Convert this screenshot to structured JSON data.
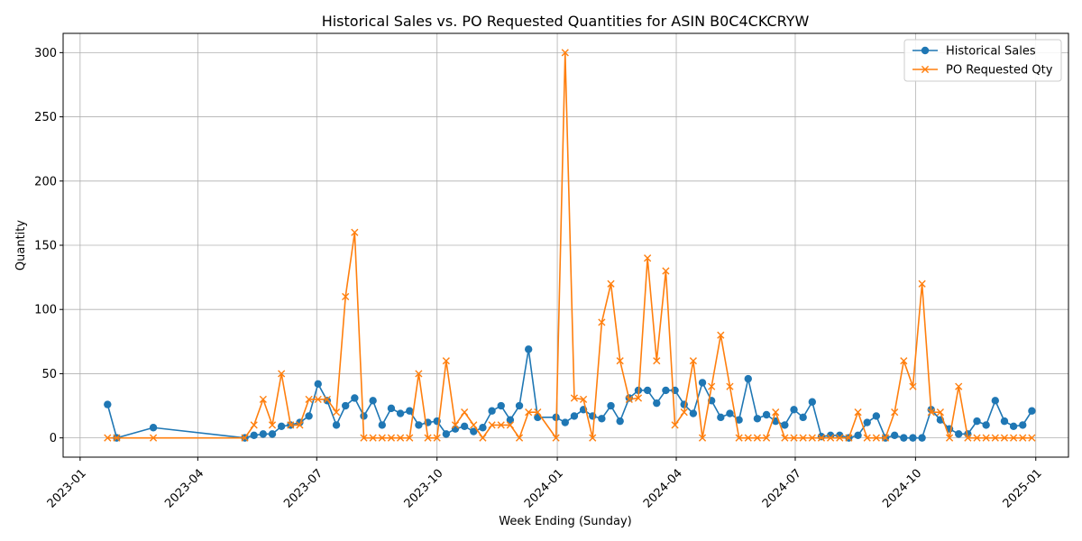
{
  "chart_data": {
    "type": "line",
    "title": "Historical Sales vs. PO Requested Quantities for ASIN B0C4CKCRYW",
    "xlabel": "Week Ending (Sunday)",
    "ylabel": "Quantity",
    "grid": true,
    "legend_position": "top-right",
    "xlim": [
      "2022-12-19",
      "2025-01-26"
    ],
    "ylim": [
      -15,
      315
    ],
    "x_ticks": [
      "2023-01",
      "2023-04",
      "2023-07",
      "2023-10",
      "2024-01",
      "2024-04",
      "2024-07",
      "2024-10",
      "2025-01"
    ],
    "y_ticks": [
      0,
      50,
      100,
      150,
      200,
      250,
      300
    ],
    "colors": {
      "sales": "#1f77b4",
      "po": "#ff7f0e",
      "grid": "#b0b0b0"
    },
    "series": [
      {
        "name": "Historical Sales",
        "marker": "circle",
        "color": "#1f77b4",
        "points": [
          [
            "2023-01-22",
            26
          ],
          [
            "2023-01-29",
            0
          ],
          [
            "2023-02-26",
            8
          ],
          [
            "2023-05-07",
            0
          ],
          [
            "2023-05-14",
            2
          ],
          [
            "2023-05-21",
            3
          ],
          [
            "2023-05-28",
            3
          ],
          [
            "2023-06-04",
            9
          ],
          [
            "2023-06-11",
            10
          ],
          [
            "2023-06-18",
            12
          ],
          [
            "2023-06-25",
            17
          ],
          [
            "2023-07-02",
            42
          ],
          [
            "2023-07-09",
            29
          ],
          [
            "2023-07-16",
            10
          ],
          [
            "2023-07-23",
            25
          ],
          [
            "2023-07-30",
            31
          ],
          [
            "2023-08-06",
            17
          ],
          [
            "2023-08-13",
            29
          ],
          [
            "2023-08-20",
            10
          ],
          [
            "2023-08-27",
            23
          ],
          [
            "2023-09-03",
            19
          ],
          [
            "2023-09-10",
            21
          ],
          [
            "2023-09-17",
            10
          ],
          [
            "2023-09-24",
            12
          ],
          [
            "2023-10-01",
            13
          ],
          [
            "2023-10-08",
            3
          ],
          [
            "2023-10-15",
            7
          ],
          [
            "2023-10-22",
            9
          ],
          [
            "2023-10-29",
            5
          ],
          [
            "2023-11-05",
            8
          ],
          [
            "2023-11-12",
            21
          ],
          [
            "2023-11-19",
            25
          ],
          [
            "2023-11-26",
            14
          ],
          [
            "2023-12-03",
            25
          ],
          [
            "2023-12-10",
            69
          ],
          [
            "2023-12-17",
            16
          ],
          [
            "2023-12-31",
            16
          ],
          [
            "2024-01-07",
            12
          ],
          [
            "2024-01-14",
            17
          ],
          [
            "2024-01-21",
            22
          ],
          [
            "2024-01-28",
            17
          ],
          [
            "2024-02-04",
            15
          ],
          [
            "2024-02-11",
            25
          ],
          [
            "2024-02-18",
            13
          ],
          [
            "2024-02-25",
            31
          ],
          [
            "2024-03-03",
            37
          ],
          [
            "2024-03-10",
            37
          ],
          [
            "2024-03-17",
            27
          ],
          [
            "2024-03-24",
            37
          ],
          [
            "2024-03-31",
            37
          ],
          [
            "2024-04-07",
            26
          ],
          [
            "2024-04-14",
            19
          ],
          [
            "2024-04-21",
            43
          ],
          [
            "2024-04-28",
            29
          ],
          [
            "2024-05-05",
            16
          ],
          [
            "2024-05-12",
            19
          ],
          [
            "2024-05-19",
            14
          ],
          [
            "2024-05-26",
            46
          ],
          [
            "2024-06-02",
            15
          ],
          [
            "2024-06-09",
            18
          ],
          [
            "2024-06-16",
            13
          ],
          [
            "2024-06-23",
            10
          ],
          [
            "2024-06-30",
            22
          ],
          [
            "2024-07-07",
            16
          ],
          [
            "2024-07-14",
            28
          ],
          [
            "2024-07-21",
            1
          ],
          [
            "2024-07-28",
            2
          ],
          [
            "2024-08-04",
            2
          ],
          [
            "2024-08-11",
            0
          ],
          [
            "2024-08-18",
            2
          ],
          [
            "2024-08-25",
            12
          ],
          [
            "2024-09-01",
            17
          ],
          [
            "2024-09-08",
            0
          ],
          [
            "2024-09-15",
            2
          ],
          [
            "2024-09-22",
            0
          ],
          [
            "2024-09-29",
            0
          ],
          [
            "2024-10-06",
            0
          ],
          [
            "2024-10-13",
            22
          ],
          [
            "2024-10-20",
            14
          ],
          [
            "2024-10-27",
            7
          ],
          [
            "2024-11-03",
            3
          ],
          [
            "2024-11-10",
            3
          ],
          [
            "2024-11-17",
            13
          ],
          [
            "2024-11-24",
            10
          ],
          [
            "2024-12-01",
            29
          ],
          [
            "2024-12-08",
            13
          ],
          [
            "2024-12-15",
            9
          ],
          [
            "2024-12-22",
            10
          ],
          [
            "2024-12-29",
            21
          ]
        ]
      },
      {
        "name": "PO Requested Qty",
        "marker": "x",
        "color": "#ff7f0e",
        "points": [
          [
            "2023-01-22",
            0
          ],
          [
            "2023-01-29",
            0
          ],
          [
            "2023-02-26",
            0
          ],
          [
            "2023-05-07",
            0
          ],
          [
            "2023-05-14",
            10
          ],
          [
            "2023-05-21",
            30
          ],
          [
            "2023-05-28",
            10
          ],
          [
            "2023-06-04",
            50
          ],
          [
            "2023-06-11",
            10
          ],
          [
            "2023-06-18",
            10
          ],
          [
            "2023-06-25",
            30
          ],
          [
            "2023-07-02",
            30
          ],
          [
            "2023-07-09",
            30
          ],
          [
            "2023-07-16",
            20
          ],
          [
            "2023-07-23",
            110
          ],
          [
            "2023-07-30",
            160
          ],
          [
            "2023-08-06",
            0
          ],
          [
            "2023-08-13",
            0
          ],
          [
            "2023-08-20",
            0
          ],
          [
            "2023-08-27",
            0
          ],
          [
            "2023-09-03",
            0
          ],
          [
            "2023-09-10",
            0
          ],
          [
            "2023-09-17",
            50
          ],
          [
            "2023-09-24",
            0
          ],
          [
            "2023-10-01",
            0
          ],
          [
            "2023-10-08",
            60
          ],
          [
            "2023-10-15",
            10
          ],
          [
            "2023-10-22",
            20
          ],
          [
            "2023-10-29",
            10
          ],
          [
            "2023-11-05",
            0
          ],
          [
            "2023-11-12",
            10
          ],
          [
            "2023-11-19",
            10
          ],
          [
            "2023-11-26",
            10
          ],
          [
            "2023-12-03",
            0
          ],
          [
            "2023-12-10",
            20
          ],
          [
            "2023-12-17",
            20
          ],
          [
            "2023-12-31",
            0
          ],
          [
            "2024-01-07",
            300
          ],
          [
            "2024-01-14",
            31
          ],
          [
            "2024-01-21",
            30
          ],
          [
            "2024-01-28",
            0
          ],
          [
            "2024-02-04",
            90
          ],
          [
            "2024-02-11",
            120
          ],
          [
            "2024-02-18",
            60
          ],
          [
            "2024-02-25",
            30
          ],
          [
            "2024-03-03",
            31
          ],
          [
            "2024-03-10",
            140
          ],
          [
            "2024-03-17",
            60
          ],
          [
            "2024-03-24",
            130
          ],
          [
            "2024-03-31",
            10
          ],
          [
            "2024-04-07",
            20
          ],
          [
            "2024-04-14",
            60
          ],
          [
            "2024-04-21",
            0
          ],
          [
            "2024-04-28",
            40
          ],
          [
            "2024-05-05",
            80
          ],
          [
            "2024-05-12",
            40
          ],
          [
            "2024-05-19",
            0
          ],
          [
            "2024-05-26",
            0
          ],
          [
            "2024-06-02",
            0
          ],
          [
            "2024-06-09",
            0
          ],
          [
            "2024-06-16",
            20
          ],
          [
            "2024-06-23",
            0
          ],
          [
            "2024-06-30",
            0
          ],
          [
            "2024-07-07",
            0
          ],
          [
            "2024-07-14",
            0
          ],
          [
            "2024-07-21",
            0
          ],
          [
            "2024-07-28",
            0
          ],
          [
            "2024-08-04",
            0
          ],
          [
            "2024-08-11",
            0
          ],
          [
            "2024-08-18",
            20
          ],
          [
            "2024-08-25",
            0
          ],
          [
            "2024-09-01",
            0
          ],
          [
            "2024-09-08",
            0
          ],
          [
            "2024-09-15",
            20
          ],
          [
            "2024-09-22",
            60
          ],
          [
            "2024-09-29",
            40
          ],
          [
            "2024-10-06",
            120
          ],
          [
            "2024-10-13",
            20
          ],
          [
            "2024-10-20",
            20
          ],
          [
            "2024-10-27",
            0
          ],
          [
            "2024-11-03",
            40
          ],
          [
            "2024-11-10",
            0
          ],
          [
            "2024-11-17",
            0
          ],
          [
            "2024-11-24",
            0
          ],
          [
            "2024-12-01",
            0
          ],
          [
            "2024-12-08",
            0
          ],
          [
            "2024-12-15",
            0
          ],
          [
            "2024-12-22",
            0
          ],
          [
            "2024-12-29",
            0
          ]
        ]
      }
    ]
  }
}
